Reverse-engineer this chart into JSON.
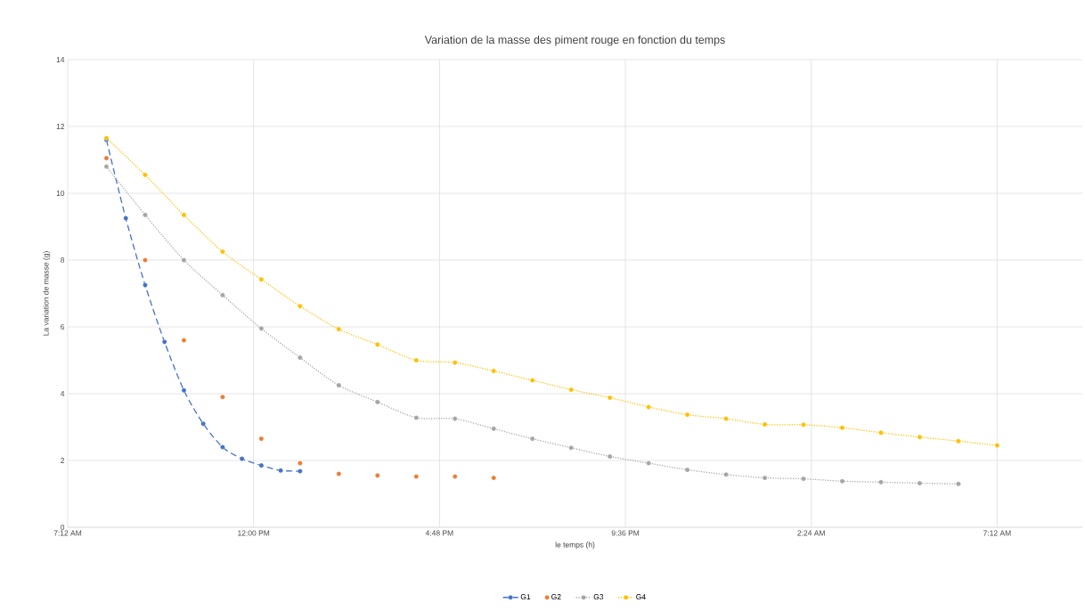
{
  "chart_data": {
    "type": "line",
    "title": "Variation de la masse des piment rouge en fonction du temps",
    "xlabel": "le temps (h)",
    "ylabel": "La variation de masse (g)",
    "xlim": [
      "2000-01-01T07:12",
      "2000-01-02T09:24"
    ],
    "ylim": [
      0,
      14
    ],
    "xticks": [
      {
        "value": "2000-01-01T07:12",
        "label": "7:12 AM"
      },
      {
        "value": "2000-01-01T12:00",
        "label": "12:00 PM"
      },
      {
        "value": "2000-01-01T16:48",
        "label": "4:48 PM"
      },
      {
        "value": "2000-01-01T21:36",
        "label": "9:36 PM"
      },
      {
        "value": "2000-01-02T02:24",
        "label": "2:24 AM"
      },
      {
        "value": "2000-01-02T07:12",
        "label": "7:12 AM"
      }
    ],
    "yticks": [
      0,
      2,
      4,
      6,
      8,
      10,
      12,
      14
    ],
    "grid": true,
    "legend": "bottom",
    "marker": "circle",
    "series": [
      {
        "name": "G1",
        "color": "#4472c4",
        "line_style": "dashed",
        "x": [
          "2000-01-01T08:12",
          "2000-01-01T08:42",
          "2000-01-01T09:12",
          "2000-01-01T09:42",
          "2000-01-01T10:12",
          "2000-01-01T10:42",
          "2000-01-01T11:12",
          "2000-01-01T11:42",
          "2000-01-01T12:12",
          "2000-01-01T12:42",
          "2000-01-01T13:12"
        ],
        "values": [
          11.6,
          9.25,
          7.25,
          5.55,
          4.1,
          3.1,
          2.4,
          2.05,
          1.85,
          1.7,
          1.68
        ]
      },
      {
        "name": "G2",
        "color": "#ed7d31",
        "type": "scatter",
        "x": [
          "2000-01-01T08:12",
          "2000-01-01T09:12",
          "2000-01-01T10:12",
          "2000-01-01T11:12",
          "2000-01-01T12:12",
          "2000-01-01T13:12",
          "2000-01-01T14:12",
          "2000-01-01T15:12",
          "2000-01-01T16:12",
          "2000-01-01T17:12",
          "2000-01-01T18:12"
        ],
        "values": [
          11.05,
          8.0,
          5.6,
          3.9,
          2.65,
          1.92,
          1.6,
          1.55,
          1.52,
          1.52,
          1.48
        ]
      },
      {
        "name": "G3",
        "color": "#a5a5a5",
        "line_style": "dotted",
        "x": [
          "2000-01-01T08:12",
          "2000-01-01T09:12",
          "2000-01-01T10:12",
          "2000-01-01T11:12",
          "2000-01-01T12:12",
          "2000-01-01T13:12",
          "2000-01-01T14:12",
          "2000-01-01T15:12",
          "2000-01-01T16:12",
          "2000-01-01T17:12",
          "2000-01-01T18:12",
          "2000-01-01T19:12",
          "2000-01-01T20:12",
          "2000-01-01T21:12",
          "2000-01-01T22:12",
          "2000-01-01T23:12",
          "2000-01-02T00:12",
          "2000-01-02T01:12",
          "2000-01-02T02:12",
          "2000-01-02T03:12",
          "2000-01-02T04:12",
          "2000-01-02T05:12",
          "2000-01-02T06:12"
        ],
        "values": [
          10.8,
          9.35,
          8.0,
          6.95,
          5.95,
          5.08,
          4.25,
          3.75,
          3.28,
          3.25,
          2.95,
          2.65,
          2.38,
          2.12,
          1.92,
          1.72,
          1.58,
          1.48,
          1.45,
          1.38,
          1.35,
          1.32,
          1.3
        ]
      },
      {
        "name": "G4",
        "color": "#ffc000",
        "line_style": "dotted",
        "x": [
          "2000-01-01T08:12",
          "2000-01-01T09:12",
          "2000-01-01T10:12",
          "2000-01-01T11:12",
          "2000-01-01T12:12",
          "2000-01-01T13:12",
          "2000-01-01T14:12",
          "2000-01-01T15:12",
          "2000-01-01T16:12",
          "2000-01-01T17:12",
          "2000-01-01T18:12",
          "2000-01-01T19:12",
          "2000-01-01T20:12",
          "2000-01-01T21:12",
          "2000-01-01T22:12",
          "2000-01-01T23:12",
          "2000-01-02T00:12",
          "2000-01-02T01:12",
          "2000-01-02T02:12",
          "2000-01-02T03:12",
          "2000-01-02T04:12",
          "2000-01-02T05:12",
          "2000-01-02T06:12",
          "2000-01-02T07:12"
        ],
        "values": [
          11.65,
          10.55,
          9.35,
          8.25,
          7.42,
          6.62,
          5.93,
          5.47,
          5.0,
          4.93,
          4.68,
          4.4,
          4.12,
          3.88,
          3.6,
          3.37,
          3.25,
          3.08,
          3.07,
          2.98,
          2.83,
          2.7,
          2.58,
          2.45
        ]
      }
    ]
  }
}
